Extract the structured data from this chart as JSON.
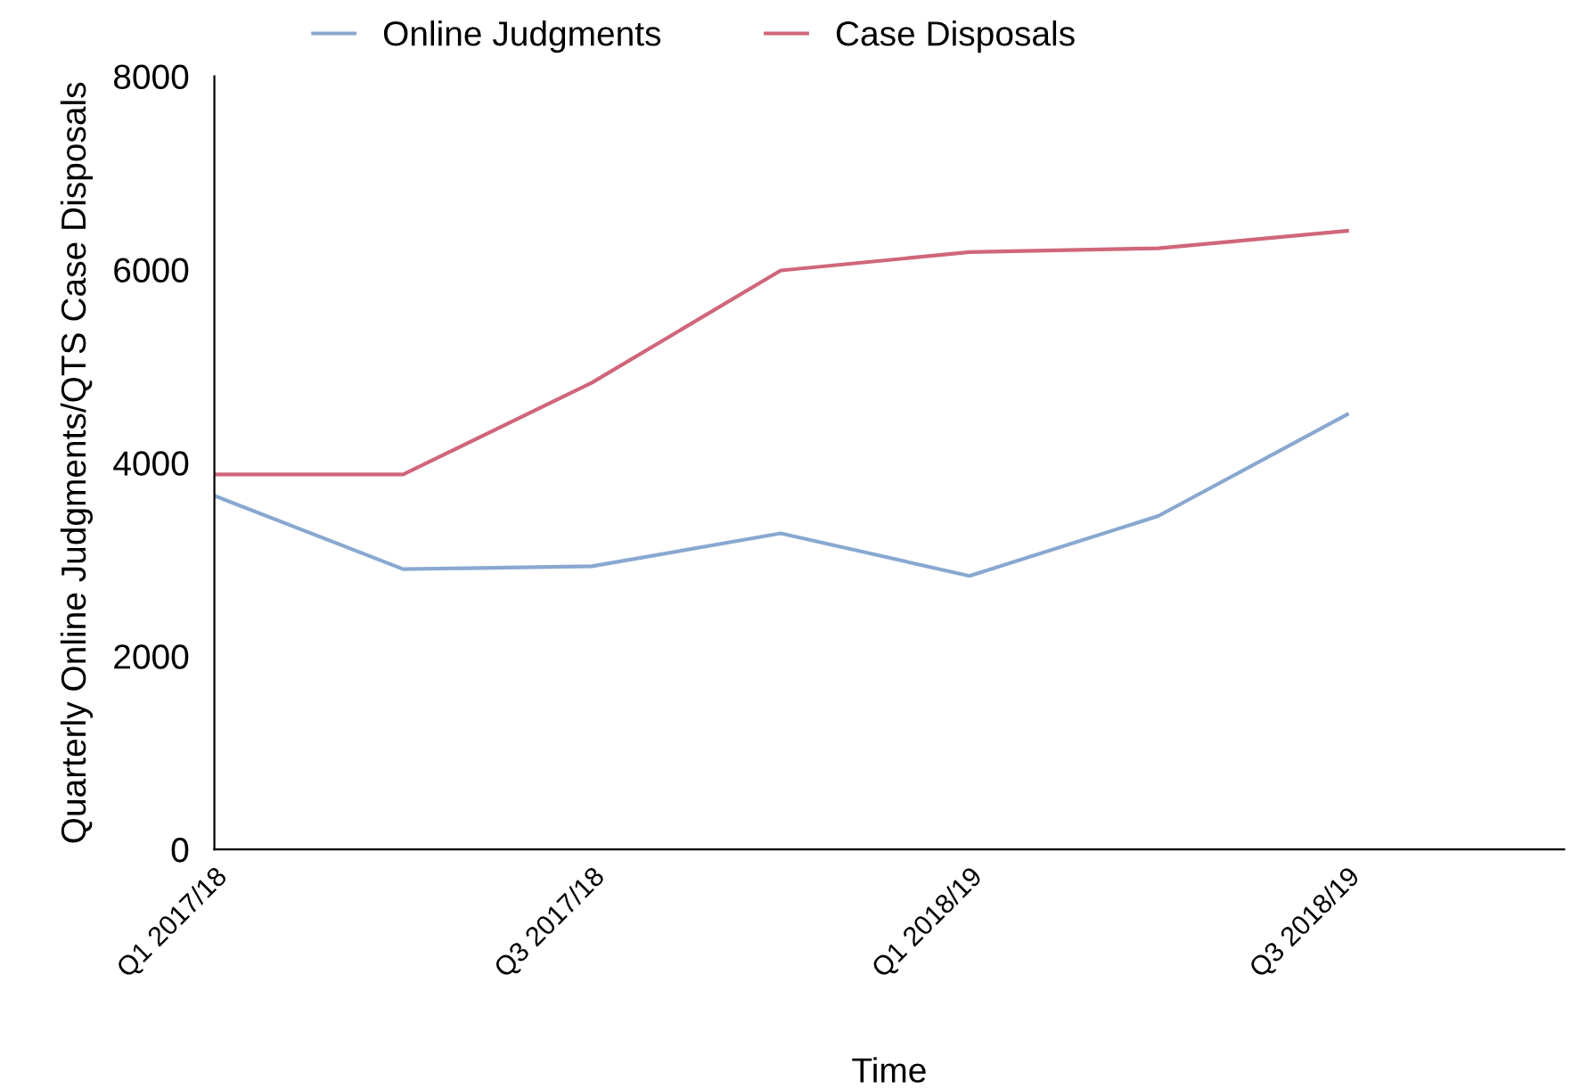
{
  "chart_data": {
    "type": "line",
    "xlabel": "Time",
    "ylabel": "Quarterly Online Judgments/QTS Case Disposals",
    "categories": [
      "Q1 2017/18",
      null,
      "Q3 2017/18",
      null,
      "Q1 2018/19",
      null,
      "Q3 2018/19"
    ],
    "series": [
      {
        "name": "Online Judgments",
        "color": "#88a8d0",
        "values": [
          3660,
          2900,
          2930,
          3270,
          2830,
          3450,
          4500
        ]
      },
      {
        "name": "Case Disposals",
        "color": "#d0667a",
        "values": [
          3880,
          3880,
          4830,
          5990,
          6180,
          6220,
          6400
        ]
      }
    ],
    "ylim": [
      0,
      8000
    ],
    "yticks": [
      0,
      2000,
      4000,
      6000,
      8000
    ],
    "grid": false,
    "legend": "top left",
    "marker": "none",
    "line_style": "solid"
  }
}
